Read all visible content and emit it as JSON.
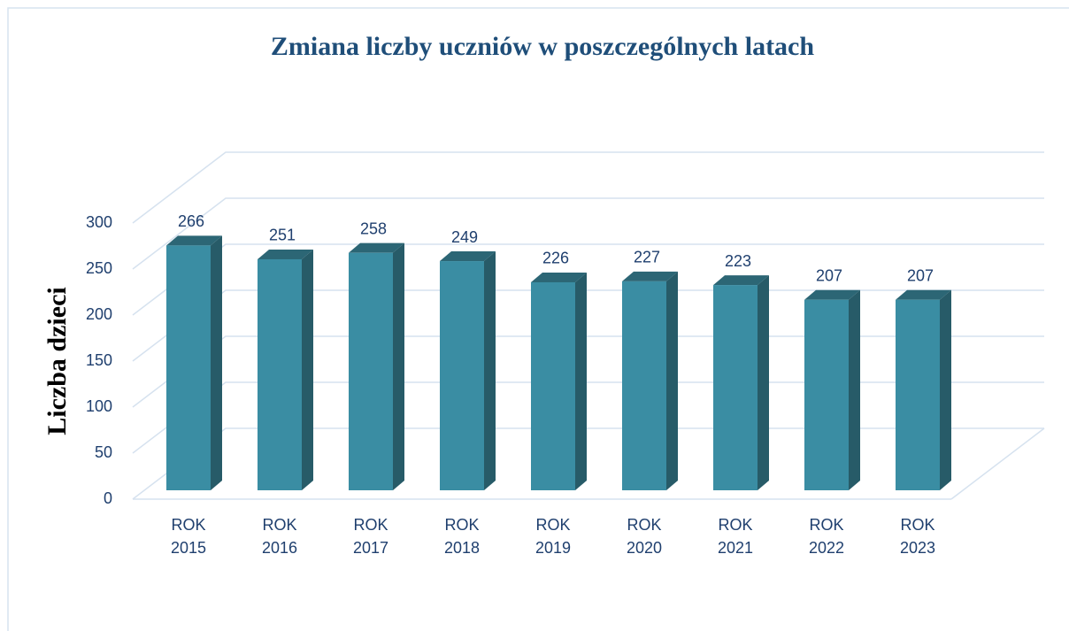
{
  "chart_data": {
    "type": "bar3d",
    "title": "Zmiana liczby uczniów w poszczególnych latach",
    "y_label": "Liczba dzieci",
    "categories": [
      "ROK 2015",
      "ROK 2016",
      "ROK 2017",
      "ROK 2018",
      "ROK 2019",
      "ROK 2020",
      "ROK 2021",
      "ROK 2022",
      "ROK 2023"
    ],
    "values": [
      266,
      251,
      258,
      249,
      226,
      227,
      223,
      207,
      207
    ],
    "color": "#3a8da3",
    "ylim": [
      0,
      300
    ],
    "yticks": [
      0,
      50,
      100,
      150,
      200,
      250,
      300
    ],
    "grid": true
  }
}
